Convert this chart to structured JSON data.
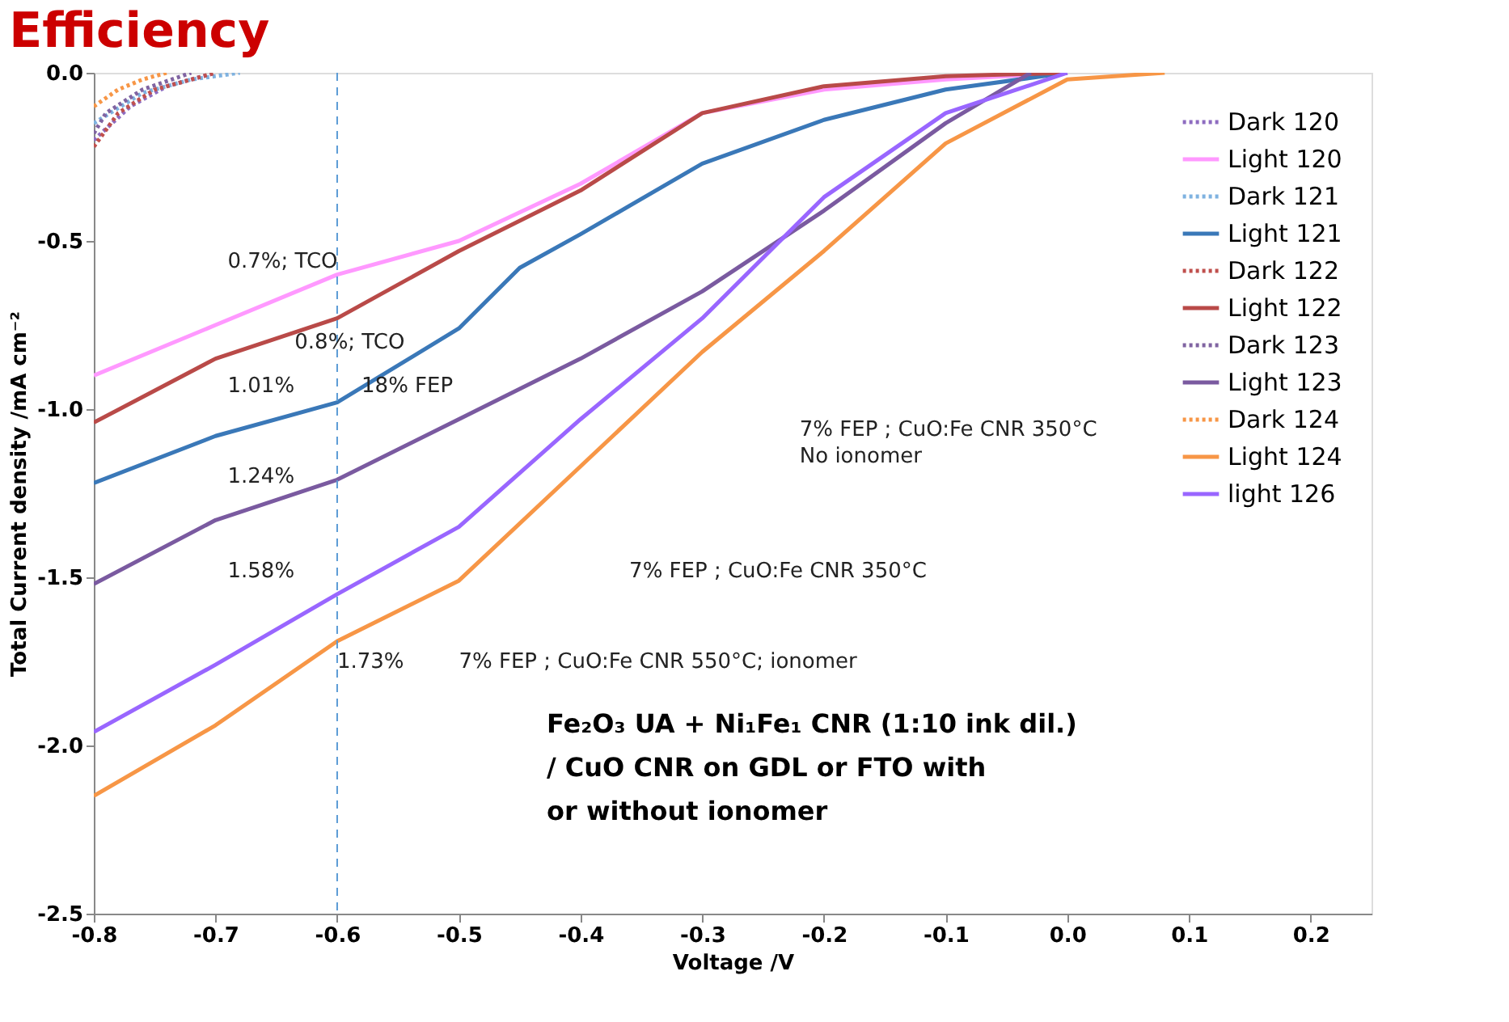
{
  "chart_data": {
    "type": "line",
    "title": "Efficiency",
    "xlabel": "Voltage /V",
    "ylabel": "Total Current density /mA cm⁻²",
    "xlim": [
      -0.8,
      0.25
    ],
    "ylim": [
      -2.5,
      0
    ],
    "xticks": [
      -0.8,
      -0.7,
      -0.6,
      -0.5,
      -0.4,
      -0.3,
      -0.2,
      -0.1,
      {
        "value": 0,
        "label": "0.0"
      },
      0.1,
      0.2
    ],
    "yticks": [
      {
        "value": -2.5,
        "label": "-2.5"
      },
      {
        "value": -2,
        "label": "-2.0"
      },
      {
        "value": -1.5,
        "label": "-1.5"
      },
      {
        "value": -1,
        "label": "-1.0"
      },
      {
        "value": -0.5,
        "label": "-0.5"
      },
      {
        "value": 0,
        "label": "0.0"
      }
    ],
    "grid": false,
    "legend": "top right",
    "series": [
      {
        "name": "Dark 120",
        "color": "#8e6cc0",
        "line_style": "dotted",
        "x": [
          -0.8,
          -0.77,
          -0.74,
          -0.7
        ],
        "values": [
          -0.2,
          -0.1,
          -0.04,
          0
        ]
      },
      {
        "name": "Light 120",
        "color": "#ff99ff",
        "line_style": "solid",
        "x": [
          -0.8,
          -0.7,
          -0.6,
          -0.5,
          -0.4,
          -0.3,
          -0.2,
          -0.1,
          0.0
        ],
        "values": [
          -0.9,
          -0.75,
          -0.6,
          -0.5,
          -0.33,
          -0.12,
          -0.05,
          -0.02,
          0
        ]
      },
      {
        "name": "Dark 121",
        "color": "#7fb2e0",
        "line_style": "dotted",
        "x": [
          -0.8,
          -0.76,
          -0.72,
          -0.68
        ],
        "values": [
          -0.15,
          -0.06,
          -0.02,
          0
        ]
      },
      {
        "name": "Light 121",
        "color": "#3a78b8",
        "line_style": "solid",
        "x": [
          -0.8,
          -0.7,
          -0.6,
          -0.5,
          -0.45,
          -0.4,
          -0.3,
          -0.2,
          -0.1,
          0.0
        ],
        "values": [
          -1.22,
          -1.08,
          -0.98,
          -0.76,
          -0.58,
          -0.48,
          -0.27,
          -0.14,
          -0.05,
          0
        ]
      },
      {
        "name": "Dark 122",
        "color": "#c0504d",
        "line_style": "dotted",
        "x": [
          -0.8,
          -0.78,
          -0.75,
          -0.7
        ],
        "values": [
          -0.22,
          -0.12,
          -0.05,
          0
        ]
      },
      {
        "name": "Light 122",
        "color": "#b94a48",
        "line_style": "solid",
        "x": [
          -0.8,
          -0.7,
          -0.6,
          -0.5,
          -0.4,
          -0.3,
          -0.2,
          -0.1,
          0.0
        ],
        "values": [
          -1.04,
          -0.85,
          -0.73,
          -0.53,
          -0.35,
          -0.12,
          -0.04,
          -0.01,
          0
        ]
      },
      {
        "name": "Dark 123",
        "color": "#8064a2",
        "line_style": "dotted",
        "x": [
          -0.8,
          -0.79,
          -0.76,
          -0.72
        ],
        "values": [
          -0.18,
          -0.12,
          -0.05,
          0
        ]
      },
      {
        "name": "Light 123",
        "color": "#7a5aa0",
        "line_style": "solid",
        "x": [
          -0.8,
          -0.7,
          -0.6,
          -0.5,
          -0.4,
          -0.3,
          -0.2,
          -0.1,
          -0.03
        ],
        "values": [
          -1.52,
          -1.33,
          -1.21,
          -1.03,
          -0.85,
          -0.65,
          -0.41,
          -0.15,
          0
        ]
      },
      {
        "name": "Dark 124",
        "color": "#f79646",
        "line_style": "dotted",
        "x": [
          -0.8,
          -0.78,
          -0.76,
          -0.74
        ],
        "values": [
          -0.1,
          -0.05,
          -0.02,
          0
        ]
      },
      {
        "name": "Light 124",
        "color": "#f79646",
        "line_style": "solid",
        "x": [
          -0.8,
          -0.7,
          -0.6,
          -0.5,
          -0.4,
          -0.3,
          -0.2,
          -0.1,
          0.0,
          0.08
        ],
        "values": [
          -2.15,
          -1.94,
          -1.69,
          -1.51,
          -1.17,
          -0.83,
          -0.53,
          -0.21,
          -0.02,
          0
        ]
      },
      {
        "name": "light 126",
        "color": "#9966ff",
        "line_style": "solid",
        "x": [
          -0.8,
          -0.7,
          -0.6,
          -0.5,
          -0.4,
          -0.3,
          -0.2,
          -0.1,
          0.0
        ],
        "values": [
          -1.96,
          -1.76,
          -1.55,
          -1.35,
          -1.03,
          -0.73,
          -0.37,
          -0.12,
          0
        ]
      }
    ],
    "ref_lines": [
      {
        "axis": "x",
        "value": -0.6,
        "color": "#5b9bd5",
        "line_style": "dashed"
      }
    ],
    "annotations": [
      "0.7%; TCO",
      "0.8%; TCO",
      "1.01%",
      "18% FEP",
      "1.24%",
      "7% FEP ; CuO:Fe CNR 350°C",
      "No ionomer",
      "1.58%",
      "7% FEP ; CuO:Fe CNR 350°C",
      "1.73%",
      "7% FEP ; CuO:Fe CNR 550°C; ionomer",
      "Fe₂O₃ UA + Ni₁Fe₁ CNR (1:10 ink dil.)\n/ CuO CNR on GDL or FTO with\nor without ionomer"
    ]
  }
}
